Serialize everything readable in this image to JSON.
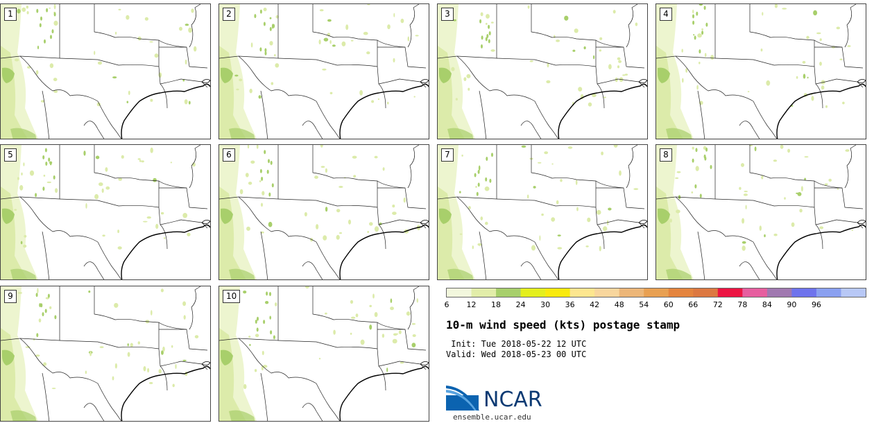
{
  "title": "10-m wind speed (kts) postage stamp",
  "init_line": " Init: Tue 2018-05-22 12 UTC",
  "valid_line": "Valid: Wed 2018-05-23 00 UTC",
  "panels": [
    {
      "label": "1"
    },
    {
      "label": "2"
    },
    {
      "label": "3"
    },
    {
      "label": "4"
    },
    {
      "label": "5"
    },
    {
      "label": "6"
    },
    {
      "label": "7"
    },
    {
      "label": "8"
    },
    {
      "label": "9"
    },
    {
      "label": "10"
    }
  ],
  "colorbar": {
    "levels": [
      6,
      12,
      18,
      24,
      30,
      36,
      42,
      48,
      54,
      60,
      66,
      72,
      78,
      84,
      90,
      96,
      102
    ],
    "tick_labels": [
      "6",
      "12",
      "18",
      "24",
      "30",
      "36",
      "42",
      "48",
      "54",
      "60",
      "66",
      "72",
      "78",
      "84",
      "90",
      "96"
    ],
    "colors": [
      "#f2f7dd",
      "#e2eda9",
      "#a7cf6b",
      "#e4ef1e",
      "#f9ea0e",
      "#fde68f",
      "#f8d69d",
      "#ecb678",
      "#e8a052",
      "#e4843e",
      "#dc7841",
      "#ec1442",
      "#e65e9f",
      "#a078b0",
      "#6e73ec",
      "#8aa0f0",
      "#b8c8f6"
    ]
  },
  "logo": {
    "text": "NCAR",
    "url": "ensemble.ucar.edu"
  },
  "map_colors": {
    "light": "#edf5cf",
    "medium": "#dcebaa",
    "dark": "#a8cf6b",
    "border": "#222222"
  }
}
